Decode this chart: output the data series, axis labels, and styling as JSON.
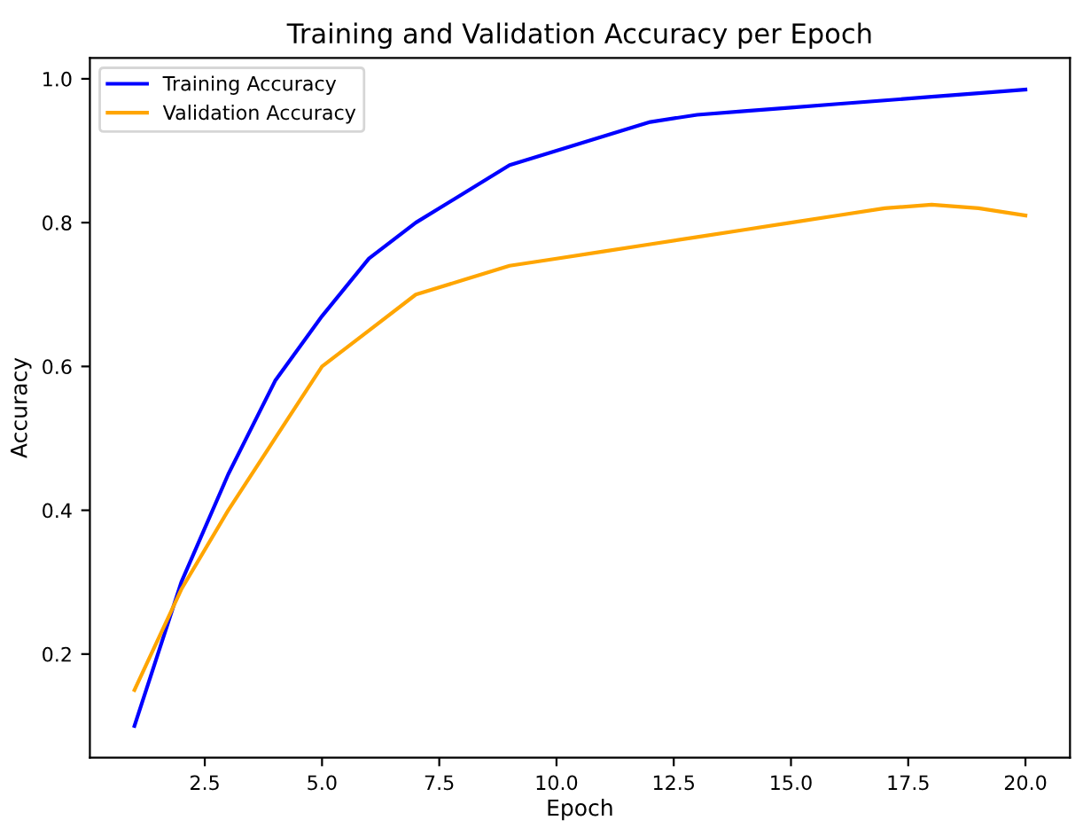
{
  "chart_data": {
    "type": "line",
    "title": "Training and Validation Accuracy per Epoch",
    "xlabel": "Epoch",
    "ylabel": "Accuracy",
    "x": [
      1,
      2,
      3,
      4,
      5,
      6,
      7,
      8,
      9,
      10,
      11,
      12,
      13,
      14,
      15,
      16,
      17,
      18,
      19,
      20
    ],
    "series": [
      {
        "name": "Training Accuracy",
        "color": "#0000ff",
        "values": [
          0.1,
          0.3,
          0.45,
          0.58,
          0.67,
          0.75,
          0.8,
          0.84,
          0.88,
          0.9,
          0.92,
          0.94,
          0.95,
          0.955,
          0.96,
          0.965,
          0.97,
          0.975,
          0.98,
          0.985
        ]
      },
      {
        "name": "Validation Accuracy",
        "color": "#ffa500",
        "values": [
          0.15,
          0.29,
          0.4,
          0.5,
          0.6,
          0.65,
          0.7,
          0.72,
          0.74,
          0.75,
          0.76,
          0.77,
          0.78,
          0.79,
          0.8,
          0.81,
          0.82,
          0.825,
          0.82,
          0.81
        ]
      }
    ],
    "xlim": [
      0.05,
      20.95
    ],
    "ylim": [
      0.056,
      1.029
    ],
    "xticks": [
      {
        "value": 2.5,
        "label": "2.5"
      },
      {
        "value": 5,
        "label": "5.0"
      },
      {
        "value": 7.5,
        "label": "7.5"
      },
      {
        "value": 10,
        "label": "10.0"
      },
      {
        "value": 12.5,
        "label": "12.5"
      },
      {
        "value": 15,
        "label": "15.0"
      },
      {
        "value": 17.5,
        "label": "17.5"
      },
      {
        "value": 20,
        "label": "20.0"
      }
    ],
    "yticks": [
      0.2,
      0.4,
      0.6,
      0.8,
      {
        "value": 1,
        "label": "1.0"
      }
    ],
    "legend": "top left",
    "grid": false,
    "marker": "none",
    "line_style": "solid"
  }
}
